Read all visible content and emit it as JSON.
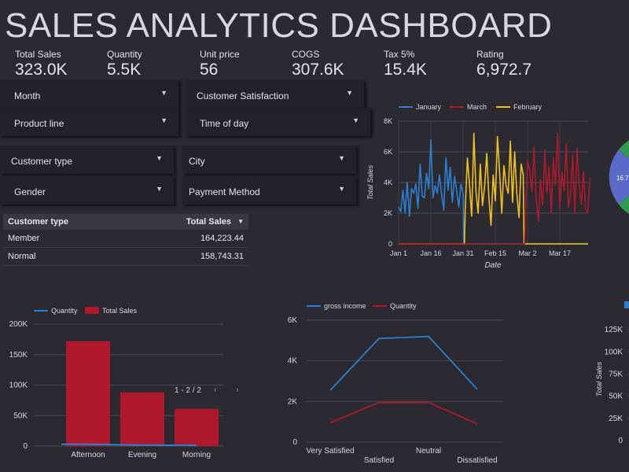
{
  "title": "SALES ANALYTICS DASHBOARD",
  "kpis": [
    {
      "label": "Total Sales",
      "value": "323.0K"
    },
    {
      "label": "Quantity",
      "value": "5.5K"
    },
    {
      "label": "Unit price",
      "value": "56"
    },
    {
      "label": "COGS",
      "value": "307.6K"
    },
    {
      "label": "Tax 5%",
      "value": "15.4K"
    },
    {
      "label": "Rating",
      "value": "6,972.7"
    }
  ],
  "filters": {
    "month": "Month",
    "customer_satisfaction": "Customer Satisfaction",
    "product_line": "Product line",
    "time_of_day": "Time of day",
    "customer_type": "Customer type",
    "city": "City",
    "gender": "Gender",
    "payment_method": "Payment Method"
  },
  "table": {
    "col1": "Customer type",
    "col2": "Total Sales",
    "rows": [
      {
        "type": "Member",
        "sales": "164,223.44"
      },
      {
        "type": "Normal",
        "sales": "158,743.31"
      }
    ]
  },
  "colors": {
    "blue": "#2d7fd0",
    "red": "#b0182e",
    "yellow": "#f2c01b",
    "green": "#2e9b4f",
    "purple": "#5b6ac7"
  },
  "chart_data": [
    {
      "type": "line",
      "xlabel": "Date",
      "ylabel": "Total Sales",
      "x_ticks": [
        "Jan 1",
        "Jan 16",
        "Jan 31",
        "Feb 15",
        "Mar 2",
        "Mar 17"
      ],
      "y_ticks": [
        "0",
        "2K",
        "4K",
        "6K",
        "8K"
      ],
      "ylim": [
        0,
        8000
      ],
      "legend": "top",
      "series": [
        {
          "name": "January",
          "color": "#2d7fd0",
          "values": [
            2400,
            2100,
            3500,
            2000,
            4000,
            1800,
            3600,
            3300,
            3900,
            2300,
            5200,
            3100,
            3000,
            4600,
            3600,
            6800,
            3000,
            3800,
            3300,
            4500,
            3200,
            2200,
            5600,
            3500,
            5000,
            2700,
            4400,
            3500,
            2400,
            3900,
            3300
          ]
        },
        {
          "name": "February",
          "color": "#f2c01b",
          "values": [
            2300,
            5600,
            3800,
            1800,
            7200,
            3400,
            2000,
            5200,
            2500,
            3700,
            5900,
            3000,
            1200,
            4500,
            2800,
            7000,
            4600,
            2000,
            5100,
            3800,
            3300,
            6700,
            2700,
            6000,
            3300,
            1700,
            5200,
            4500
          ]
        },
        {
          "name": "March",
          "color": "#b0182e",
          "values": [
            2100,
            5400,
            4800,
            3400,
            6300,
            2900,
            1500,
            4200,
            2500,
            6100,
            3300,
            5000,
            2000,
            5600,
            3800,
            7200,
            2300,
            4700,
            3500,
            6500,
            2400,
            3300,
            5800,
            2000,
            6200,
            3800,
            2600,
            4700,
            2300,
            2000,
            4300
          ]
        }
      ]
    },
    {
      "type": "bar",
      "categories": [
        "Afternoon",
        "Evening",
        "Morning"
      ],
      "y_ticks": [
        "0",
        "50K",
        "100K",
        "150K",
        "200K"
      ],
      "ylim": [
        0,
        200000
      ],
      "pager": "1 - 2 / 2",
      "series": [
        {
          "name": "Total Sales",
          "color": "#b0182e",
          "values": [
            172000,
            88000,
            61000
          ]
        },
        {
          "name": "Quantity",
          "color": "#2d7fd0",
          "values": [
            2900,
            1500,
            1100
          ]
        }
      ]
    },
    {
      "type": "line",
      "categories": [
        "Very Satisfied",
        "Satisfied",
        "Neutral",
        "Dissatisfied"
      ],
      "y_ticks": [
        "0",
        "2K",
        "4K",
        "6K"
      ],
      "ylim": [
        0,
        6000
      ],
      "series": [
        {
          "name": "gross income",
          "color": "#2d7fd0",
          "values": [
            2550,
            5100,
            5200,
            2600
          ]
        },
        {
          "name": "Quantity",
          "color": "#b0182e",
          "values": [
            950,
            1950,
            1950,
            900
          ]
        }
      ]
    },
    {
      "type": "bar",
      "ylabel": "Total Sales",
      "y_ticks": [
        "0",
        "25K",
        "50K",
        "75K",
        "100K",
        "125K"
      ],
      "ylim": [
        0,
        137500
      ]
    },
    {
      "type": "pie",
      "slice_label": "16.7"
    }
  ]
}
